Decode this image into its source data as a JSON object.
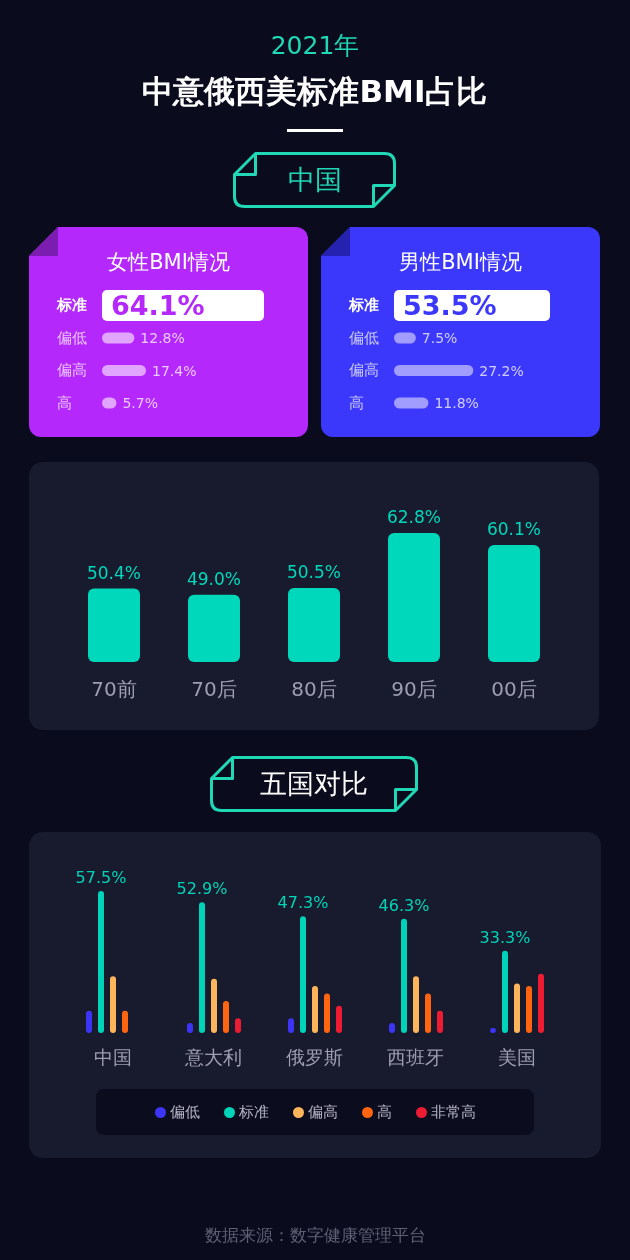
{
  "chart_data": [
    {
      "type": "other",
      "subtitle": "2021年",
      "title": "中意俄西美标准BMI占比"
    },
    {
      "type": "other",
      "title": "中国"
    },
    {
      "type": "bar",
      "orientation": "horizontal",
      "title": "女性BMI情况",
      "categories": [
        "标准",
        "偏低",
        "偏高",
        "高"
      ],
      "values": [
        64.1,
        12.8,
        17.4,
        5.7
      ],
      "value_labels": [
        "64.1%",
        "12.8%",
        "17.4%",
        "5.7%"
      ],
      "colors": [
        "#ffffff",
        "#e2a5ff",
        "#e2a5ff",
        "#e2a5ff"
      ],
      "xlim": [
        0,
        64.1
      ],
      "tick_labels": "y"
    },
    {
      "type": "bar",
      "orientation": "horizontal",
      "title": "男性BMI情况",
      "categories": [
        "标准",
        "偏低",
        "偏高",
        "高"
      ],
      "values": [
        53.5,
        7.5,
        27.2,
        11.8
      ],
      "value_labels": [
        "53.5%",
        "7.5%",
        "27.2%",
        "11.8%"
      ],
      "colors": [
        "#ffffff",
        "#a19dff",
        "#a19dff",
        "#a19dff"
      ],
      "xlim": [
        0,
        53.5
      ],
      "tick_labels": "y"
    },
    {
      "type": "bar",
      "categories": [
        "70前",
        "70后",
        "80后",
        "90后",
        "00后"
      ],
      "values": [
        50.4,
        49.0,
        50.5,
        62.8,
        60.1
      ],
      "value_labels": [
        "50.4%",
        "49.0%",
        "50.5%",
        "62.8%",
        "60.1%"
      ],
      "color": "#00d8bc",
      "ylim": [
        34,
        62.8
      ],
      "tick_labels": "x"
    },
    {
      "type": "bar",
      "title": "五国对比",
      "categories": [
        "中国",
        "意大利",
        "俄罗斯",
        "西班牙",
        "美国"
      ],
      "series": [
        {
          "name": "偏低",
          "color": "#3d35f5",
          "values": [
            9,
            4,
            6,
            4,
            2
          ]
        },
        {
          "name": "标准",
          "color": "#00d4b8",
          "values": [
            57.5,
            52.9,
            47.3,
            46.3,
            33.3
          ],
          "value_labels": [
            "57.5%",
            "52.9%",
            "47.3%",
            "46.3%",
            "33.3%"
          ]
        },
        {
          "name": "偏高",
          "color": "#fdb55c",
          "values": [
            23,
            22,
            19,
            23,
            20
          ]
        },
        {
          "name": "高",
          "color": "#ff6410",
          "values": [
            9,
            13,
            16,
            16,
            19
          ]
        },
        {
          "name": "非常高",
          "color": "#ee1c32",
          "values": [
            null,
            6,
            11,
            9,
            24
          ]
        }
      ],
      "ylim": [
        0,
        57.5
      ],
      "legend": "bottom",
      "tick_labels": "x",
      "annotations": [
        "数据来源：数字健康管理平台"
      ]
    }
  ]
}
